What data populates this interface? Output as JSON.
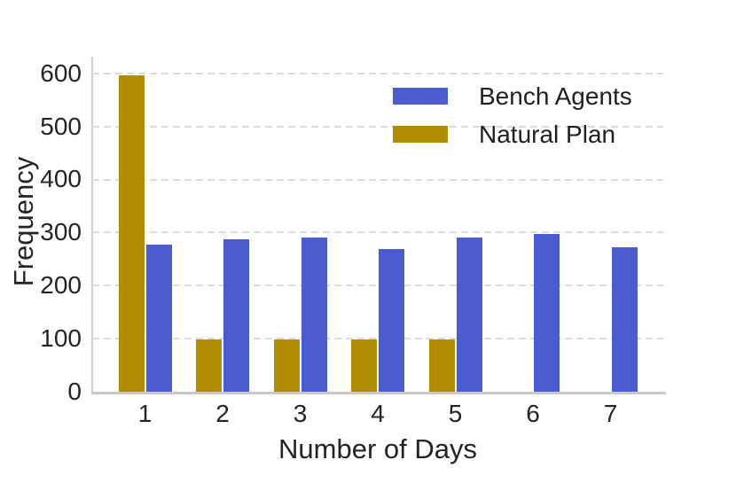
{
  "chart_data": {
    "type": "bar",
    "title": "",
    "xlabel": "Number of Days",
    "ylabel": "Frequency",
    "categories": [
      "1",
      "2",
      "3",
      "4",
      "5",
      "6",
      "7"
    ],
    "series": [
      {
        "name": "Bench Agents",
        "color": "#4a5cd0",
        "values": [
          278,
          288,
          291,
          269,
          291,
          298,
          272
        ]
      },
      {
        "name": "Natural Plan",
        "color": "#b08c00",
        "values": [
          597,
          98,
          98,
          98,
          98,
          0,
          0
        ]
      }
    ],
    "bar_order": [
      "Natural Plan",
      "Bench Agents"
    ],
    "yticks": [
      0,
      100,
      200,
      300,
      400,
      500,
      600
    ],
    "ylim": [
      0,
      643
    ],
    "grid": "dashed-horizontal",
    "legend_position": "upper-right-inside",
    "spines": [
      "left",
      "bottom"
    ],
    "grid_color": "#dbdbdb",
    "spine_color": "#cccccc",
    "text_color": "#242424"
  }
}
